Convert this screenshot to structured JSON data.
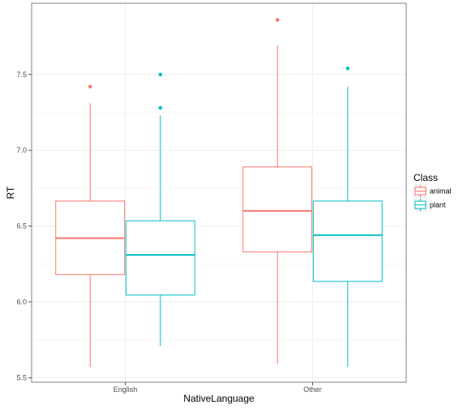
{
  "chart_data": {
    "type": "boxplot",
    "xlabel": "NativeLanguage",
    "ylabel": "RT",
    "categories": [
      "English",
      "Other"
    ],
    "ylim": [
      5.47,
      7.97
    ],
    "y_ticks": [
      5.5,
      6.0,
      6.5,
      7.0,
      7.5
    ],
    "y_tick_labels": [
      "5.5",
      "6.0",
      "6.5",
      "7.0",
      "7.5"
    ],
    "grid": true,
    "legend": {
      "title": "Class",
      "position": "right",
      "entries": [
        "animal",
        "plant"
      ]
    },
    "series": [
      {
        "name": "animal",
        "color": "#F8766D",
        "boxes": [
          {
            "category": "English",
            "lower_whisker": 5.57,
            "q1": 6.18,
            "median": 6.42,
            "q3": 6.665,
            "upper_whisker": 7.31,
            "outliers": [
              7.42
            ]
          },
          {
            "category": "Other",
            "lower_whisker": 5.59,
            "q1": 6.33,
            "median": 6.6,
            "q3": 6.89,
            "upper_whisker": 7.69,
            "outliers": [
              7.86
            ]
          }
        ]
      },
      {
        "name": "plant",
        "color": "#00BFC4",
        "boxes": [
          {
            "category": "English",
            "lower_whisker": 5.71,
            "q1": 6.045,
            "median": 6.31,
            "q3": 6.535,
            "upper_whisker": 7.23,
            "outliers": [
              7.28,
              7.5
            ]
          },
          {
            "category": "Other",
            "lower_whisker": 5.57,
            "q1": 6.135,
            "median": 6.44,
            "q3": 6.665,
            "upper_whisker": 7.42,
            "outliers": [
              7.54
            ]
          }
        ]
      }
    ]
  }
}
